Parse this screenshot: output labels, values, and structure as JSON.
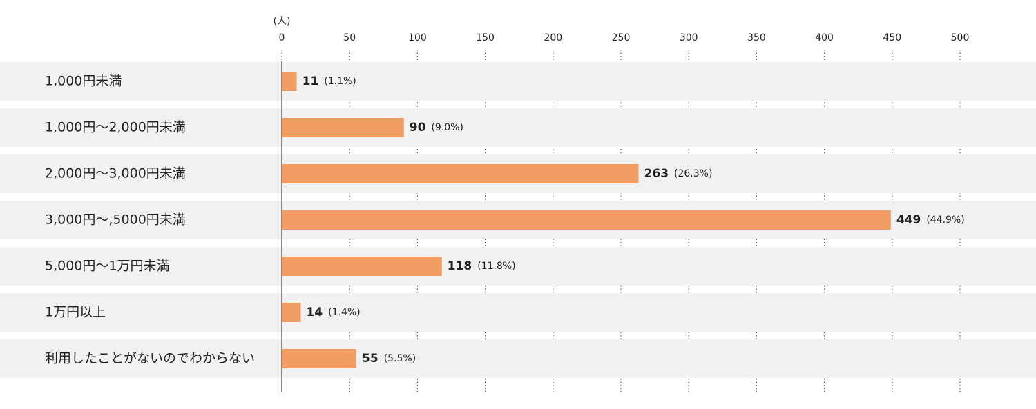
{
  "chart_data": {
    "type": "hbar",
    "unit": "(人)",
    "categories": [
      "1,000円未満",
      "1,000円〜2,000円未満",
      "2,000円〜3,000円未満",
      "3,000円〜,5000円未満",
      "5,000円〜1万円未満",
      "1万円以上",
      "利用したことがないのでわからない"
    ],
    "values": [
      11,
      90,
      263,
      449,
      118,
      14,
      55
    ],
    "share_labels": [
      "(1.1%)",
      "(9.0%)",
      "(26.3%)",
      "(44.9%)",
      "(11.8%)",
      "(1.4%)",
      "(5.5%)"
    ],
    "color": "#f29d64",
    "xlim": [
      0,
      500
    ],
    "xticks": [
      0,
      50,
      100,
      150,
      200,
      250,
      300,
      350,
      400,
      450,
      500
    ],
    "grid": true
  }
}
